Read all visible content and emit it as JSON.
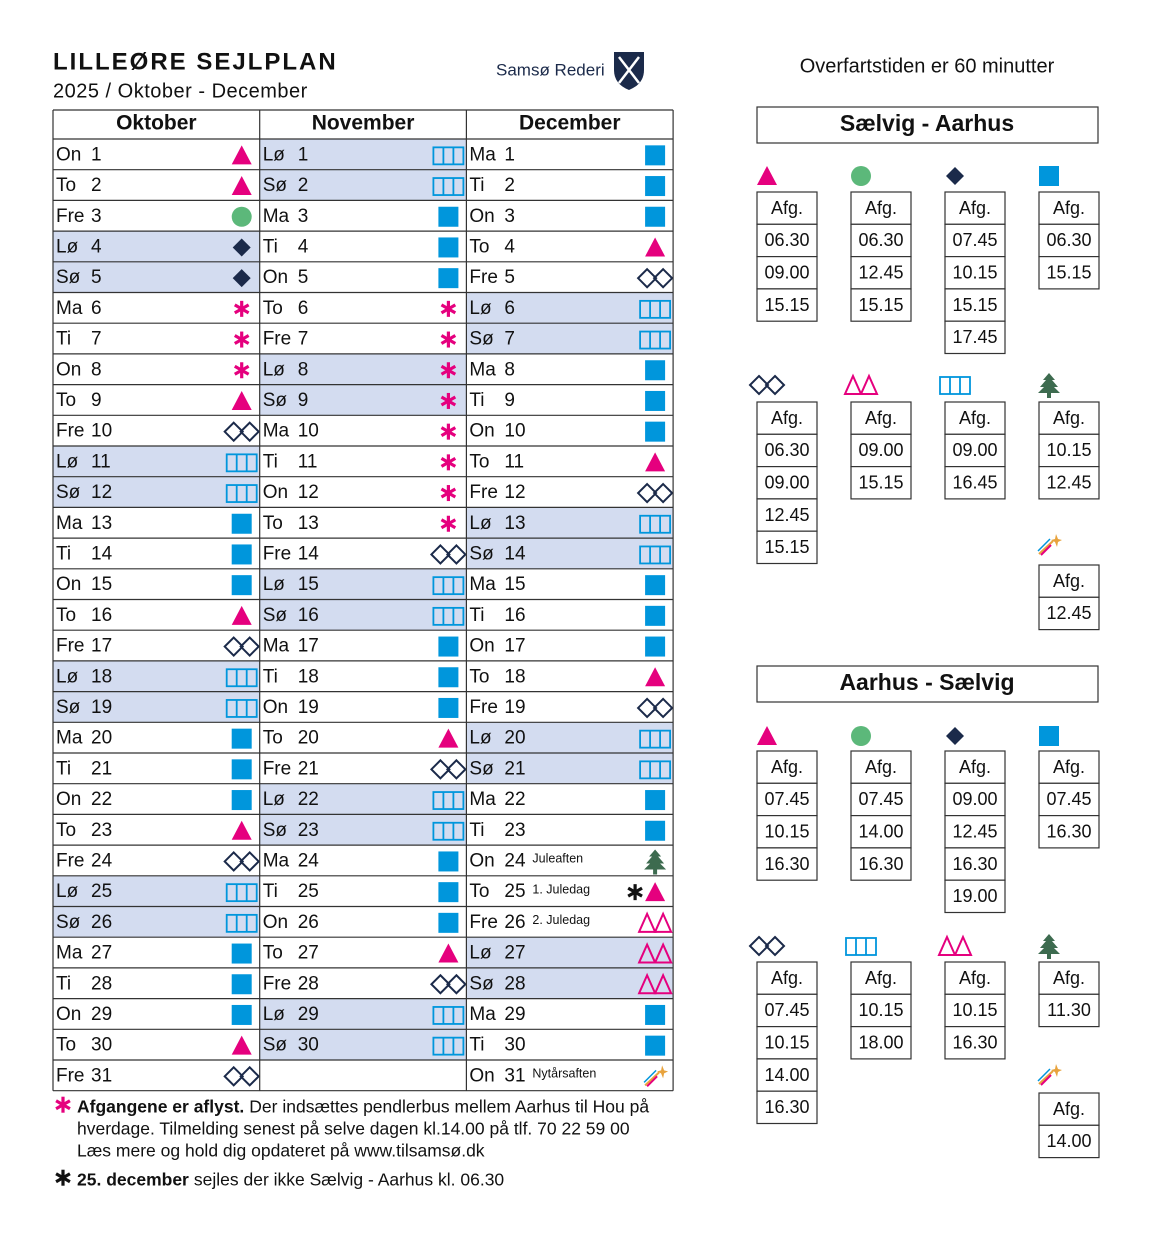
{
  "header": {
    "title": "LILLEØRE SEJLPLAN",
    "subtitle": "2025 / Oktober - December",
    "brand": "Samsø Rederi",
    "duration": "Overfartstiden er 60 minutter"
  },
  "calendar": [
    {
      "month": "Oktober",
      "days": [
        {
          "weekday": "On",
          "day": 1,
          "icon": "triangle"
        },
        {
          "weekday": "To",
          "day": 2,
          "icon": "triangle"
        },
        {
          "weekday": "Fre",
          "day": 3,
          "icon": "circle"
        },
        {
          "weekday": "Lø",
          "day": 4,
          "icon": "diamond",
          "weekend": true
        },
        {
          "weekday": "Sø",
          "day": 5,
          "icon": "diamond",
          "weekend": true
        },
        {
          "weekday": "Ma",
          "day": 6,
          "icon": "asterisk"
        },
        {
          "weekday": "Ti",
          "day": 7,
          "icon": "asterisk"
        },
        {
          "weekday": "On",
          "day": 8,
          "icon": "asterisk"
        },
        {
          "weekday": "To",
          "day": 9,
          "icon": "triangle"
        },
        {
          "weekday": "Fre",
          "day": 10,
          "icon": "diamonds"
        },
        {
          "weekday": "Lø",
          "day": 11,
          "icon": "bars",
          "weekend": true
        },
        {
          "weekday": "Sø",
          "day": 12,
          "icon": "bars",
          "weekend": true
        },
        {
          "weekday": "Ma",
          "day": 13,
          "icon": "square"
        },
        {
          "weekday": "Ti",
          "day": 14,
          "icon": "square"
        },
        {
          "weekday": "On",
          "day": 15,
          "icon": "square"
        },
        {
          "weekday": "To",
          "day": 16,
          "icon": "triangle"
        },
        {
          "weekday": "Fre",
          "day": 17,
          "icon": "diamonds"
        },
        {
          "weekday": "Lø",
          "day": 18,
          "icon": "bars",
          "weekend": true
        },
        {
          "weekday": "Sø",
          "day": 19,
          "icon": "bars",
          "weekend": true
        },
        {
          "weekday": "Ma",
          "day": 20,
          "icon": "square"
        },
        {
          "weekday": "Ti",
          "day": 21,
          "icon": "square"
        },
        {
          "weekday": "On",
          "day": 22,
          "icon": "square"
        },
        {
          "weekday": "To",
          "day": 23,
          "icon": "triangle"
        },
        {
          "weekday": "Fre",
          "day": 24,
          "icon": "diamonds"
        },
        {
          "weekday": "Lø",
          "day": 25,
          "icon": "bars",
          "weekend": true
        },
        {
          "weekday": "Sø",
          "day": 26,
          "icon": "bars",
          "weekend": true
        },
        {
          "weekday": "Ma",
          "day": 27,
          "icon": "square"
        },
        {
          "weekday": "Ti",
          "day": 28,
          "icon": "square"
        },
        {
          "weekday": "On",
          "day": 29,
          "icon": "square"
        },
        {
          "weekday": "To",
          "day": 30,
          "icon": "triangle"
        },
        {
          "weekday": "Fre",
          "day": 31,
          "icon": "diamonds"
        }
      ]
    },
    {
      "month": "November",
      "days": [
        {
          "weekday": "Lø",
          "day": 1,
          "icon": "bars",
          "weekend": true
        },
        {
          "weekday": "Sø",
          "day": 2,
          "icon": "bars",
          "weekend": true
        },
        {
          "weekday": "Ma",
          "day": 3,
          "icon": "square"
        },
        {
          "weekday": "Ti",
          "day": 4,
          "icon": "square"
        },
        {
          "weekday": "On",
          "day": 5,
          "icon": "square"
        },
        {
          "weekday": "To",
          "day": 6,
          "icon": "asterisk"
        },
        {
          "weekday": "Fre",
          "day": 7,
          "icon": "asterisk"
        },
        {
          "weekday": "Lø",
          "day": 8,
          "icon": "asterisk",
          "weekend": true
        },
        {
          "weekday": "Sø",
          "day": 9,
          "icon": "asterisk",
          "weekend": true
        },
        {
          "weekday": "Ma",
          "day": 10,
          "icon": "asterisk"
        },
        {
          "weekday": "Ti",
          "day": 11,
          "icon": "asterisk"
        },
        {
          "weekday": "On",
          "day": 12,
          "icon": "asterisk"
        },
        {
          "weekday": "To",
          "day": 13,
          "icon": "asterisk"
        },
        {
          "weekday": "Fre",
          "day": 14,
          "icon": "diamonds"
        },
        {
          "weekday": "Lø",
          "day": 15,
          "icon": "bars",
          "weekend": true
        },
        {
          "weekday": "Sø",
          "day": 16,
          "icon": "bars",
          "weekend": true
        },
        {
          "weekday": "Ma",
          "day": 17,
          "icon": "square"
        },
        {
          "weekday": "Ti",
          "day": 18,
          "icon": "square"
        },
        {
          "weekday": "On",
          "day": 19,
          "icon": "square"
        },
        {
          "weekday": "To",
          "day": 20,
          "icon": "triangle"
        },
        {
          "weekday": "Fre",
          "day": 21,
          "icon": "diamonds"
        },
        {
          "weekday": "Lø",
          "day": 22,
          "icon": "bars",
          "weekend": true
        },
        {
          "weekday": "Sø",
          "day": 23,
          "icon": "bars",
          "weekend": true
        },
        {
          "weekday": "Ma",
          "day": 24,
          "icon": "square"
        },
        {
          "weekday": "Ti",
          "day": 25,
          "icon": "square"
        },
        {
          "weekday": "On",
          "day": 26,
          "icon": "square"
        },
        {
          "weekday": "To",
          "day": 27,
          "icon": "triangle"
        },
        {
          "weekday": "Fre",
          "day": 28,
          "icon": "diamonds"
        },
        {
          "weekday": "Lø",
          "day": 29,
          "icon": "bars",
          "weekend": true
        },
        {
          "weekday": "Sø",
          "day": 30,
          "icon": "bars",
          "weekend": true
        }
      ]
    },
    {
      "month": "December",
      "days": [
        {
          "weekday": "Ma",
          "day": 1,
          "icon": "square"
        },
        {
          "weekday": "Ti",
          "day": 2,
          "icon": "square"
        },
        {
          "weekday": "On",
          "day": 3,
          "icon": "square"
        },
        {
          "weekday": "To",
          "day": 4,
          "icon": "triangle"
        },
        {
          "weekday": "Fre",
          "day": 5,
          "icon": "diamonds"
        },
        {
          "weekday": "Lø",
          "day": 6,
          "icon": "bars",
          "weekend": true
        },
        {
          "weekday": "Sø",
          "day": 7,
          "icon": "bars",
          "weekend": true
        },
        {
          "weekday": "Ma",
          "day": 8,
          "icon": "square"
        },
        {
          "weekday": "Ti",
          "day": 9,
          "icon": "square"
        },
        {
          "weekday": "On",
          "day": 10,
          "icon": "square"
        },
        {
          "weekday": "To",
          "day": 11,
          "icon": "triangle"
        },
        {
          "weekday": "Fre",
          "day": 12,
          "icon": "diamonds"
        },
        {
          "weekday": "Lø",
          "day": 13,
          "icon": "bars",
          "weekend": true
        },
        {
          "weekday": "Sø",
          "day": 14,
          "icon": "bars",
          "weekend": true
        },
        {
          "weekday": "Ma",
          "day": 15,
          "icon": "square"
        },
        {
          "weekday": "Ti",
          "day": 16,
          "icon": "square"
        },
        {
          "weekday": "On",
          "day": 17,
          "icon": "square"
        },
        {
          "weekday": "To",
          "day": 18,
          "icon": "triangle"
        },
        {
          "weekday": "Fre",
          "day": 19,
          "icon": "diamonds"
        },
        {
          "weekday": "Lø",
          "day": 20,
          "icon": "bars",
          "weekend": true
        },
        {
          "weekday": "Sø",
          "day": 21,
          "icon": "bars",
          "weekend": true
        },
        {
          "weekday": "Ma",
          "day": 22,
          "icon": "square"
        },
        {
          "weekday": "Ti",
          "day": 23,
          "icon": "square"
        },
        {
          "weekday": "On",
          "day": 24,
          "icon": "tree",
          "note": "Juleaften"
        },
        {
          "weekday": "To",
          "day": 25,
          "icon": "black-asterisk triangle",
          "note": "1. Juledag"
        },
        {
          "weekday": "Fre",
          "day": 26,
          "icon": "mountains",
          "note": "2. Juledag"
        },
        {
          "weekday": "Lø",
          "day": 27,
          "icon": "mountains",
          "weekend": true
        },
        {
          "weekday": "Sø",
          "day": 28,
          "icon": "mountains",
          "weekend": true
        },
        {
          "weekday": "Ma",
          "day": 29,
          "icon": "square"
        },
        {
          "weekday": "Ti",
          "day": 30,
          "icon": "square"
        },
        {
          "weekday": "On",
          "day": 31,
          "icon": "firework",
          "note": "Nytårsaften"
        }
      ]
    }
  ],
  "footnotes": [
    {
      "icon": "asterisk",
      "bold": "Afgangene er aflyst.",
      "lines": [
        "Der indsættes pendlerbus mellem Aarhus til Hou på",
        "hverdage. Tilmelding senest på selve dagen kl.14.00 på tlf. 70 22 59 00",
        "Læs mere og hold dig opdateret på www.tilsamsø.dk"
      ]
    },
    {
      "icon": "black-asterisk",
      "bold": "25. december",
      "lines": [
        "sejles der ikke Sælvig - Aarhus kl. 06.30"
      ]
    }
  ],
  "routes": [
    {
      "title": "Sælvig - Aarhus",
      "groups": [
        {
          "icon": "triangle",
          "header": "Afg.",
          "times": [
            "06.30",
            "09.00",
            "15.15"
          ]
        },
        {
          "icon": "circle",
          "header": "Afg.",
          "times": [
            "06.30",
            "12.45",
            "15.15"
          ]
        },
        {
          "icon": "diamond",
          "header": "Afg.",
          "times": [
            "07.45",
            "10.15",
            "15.15",
            "17.45"
          ]
        },
        {
          "icon": "square",
          "header": "Afg.",
          "times": [
            "06.30",
            "15.15"
          ]
        },
        {
          "icon": "diamonds",
          "header": "Afg.",
          "times": [
            "06.30",
            "09.00",
            "12.45",
            "15.15"
          ]
        },
        {
          "icon": "mountains",
          "header": "Afg.",
          "times": [
            "09.00",
            "15.15"
          ]
        },
        {
          "icon": "bars",
          "header": "Afg.",
          "times": [
            "09.00",
            "16.45"
          ]
        },
        {
          "icon": "tree",
          "header": "Afg.",
          "times": [
            "10.15",
            "12.45"
          ]
        },
        {
          "icon": "firework",
          "header": "Afg.",
          "times": [
            "12.45"
          ]
        }
      ]
    },
    {
      "title": "Aarhus - Sælvig",
      "groups": [
        {
          "icon": "triangle",
          "header": "Afg.",
          "times": [
            "07.45",
            "10.15",
            "16.30"
          ]
        },
        {
          "icon": "circle",
          "header": "Afg.",
          "times": [
            "07.45",
            "14.00",
            "16.30"
          ]
        },
        {
          "icon": "diamond",
          "header": "Afg.",
          "times": [
            "09.00",
            "12.45",
            "16.30",
            "19.00"
          ]
        },
        {
          "icon": "square",
          "header": "Afg.",
          "times": [
            "07.45",
            "16.30"
          ]
        },
        {
          "icon": "diamonds",
          "header": "Afg.",
          "times": [
            "07.45",
            "10.15",
            "14.00",
            "16.30"
          ]
        },
        {
          "icon": "bars",
          "header": "Afg.",
          "times": [
            "10.15",
            "18.00"
          ]
        },
        {
          "icon": "mountains",
          "header": "Afg.",
          "times": [
            "10.15",
            "16.30"
          ]
        },
        {
          "icon": "tree",
          "header": "Afg.",
          "times": [
            "11.30"
          ]
        },
        {
          "icon": "firework",
          "header": "Afg.",
          "times": [
            "14.00"
          ]
        }
      ]
    }
  ]
}
